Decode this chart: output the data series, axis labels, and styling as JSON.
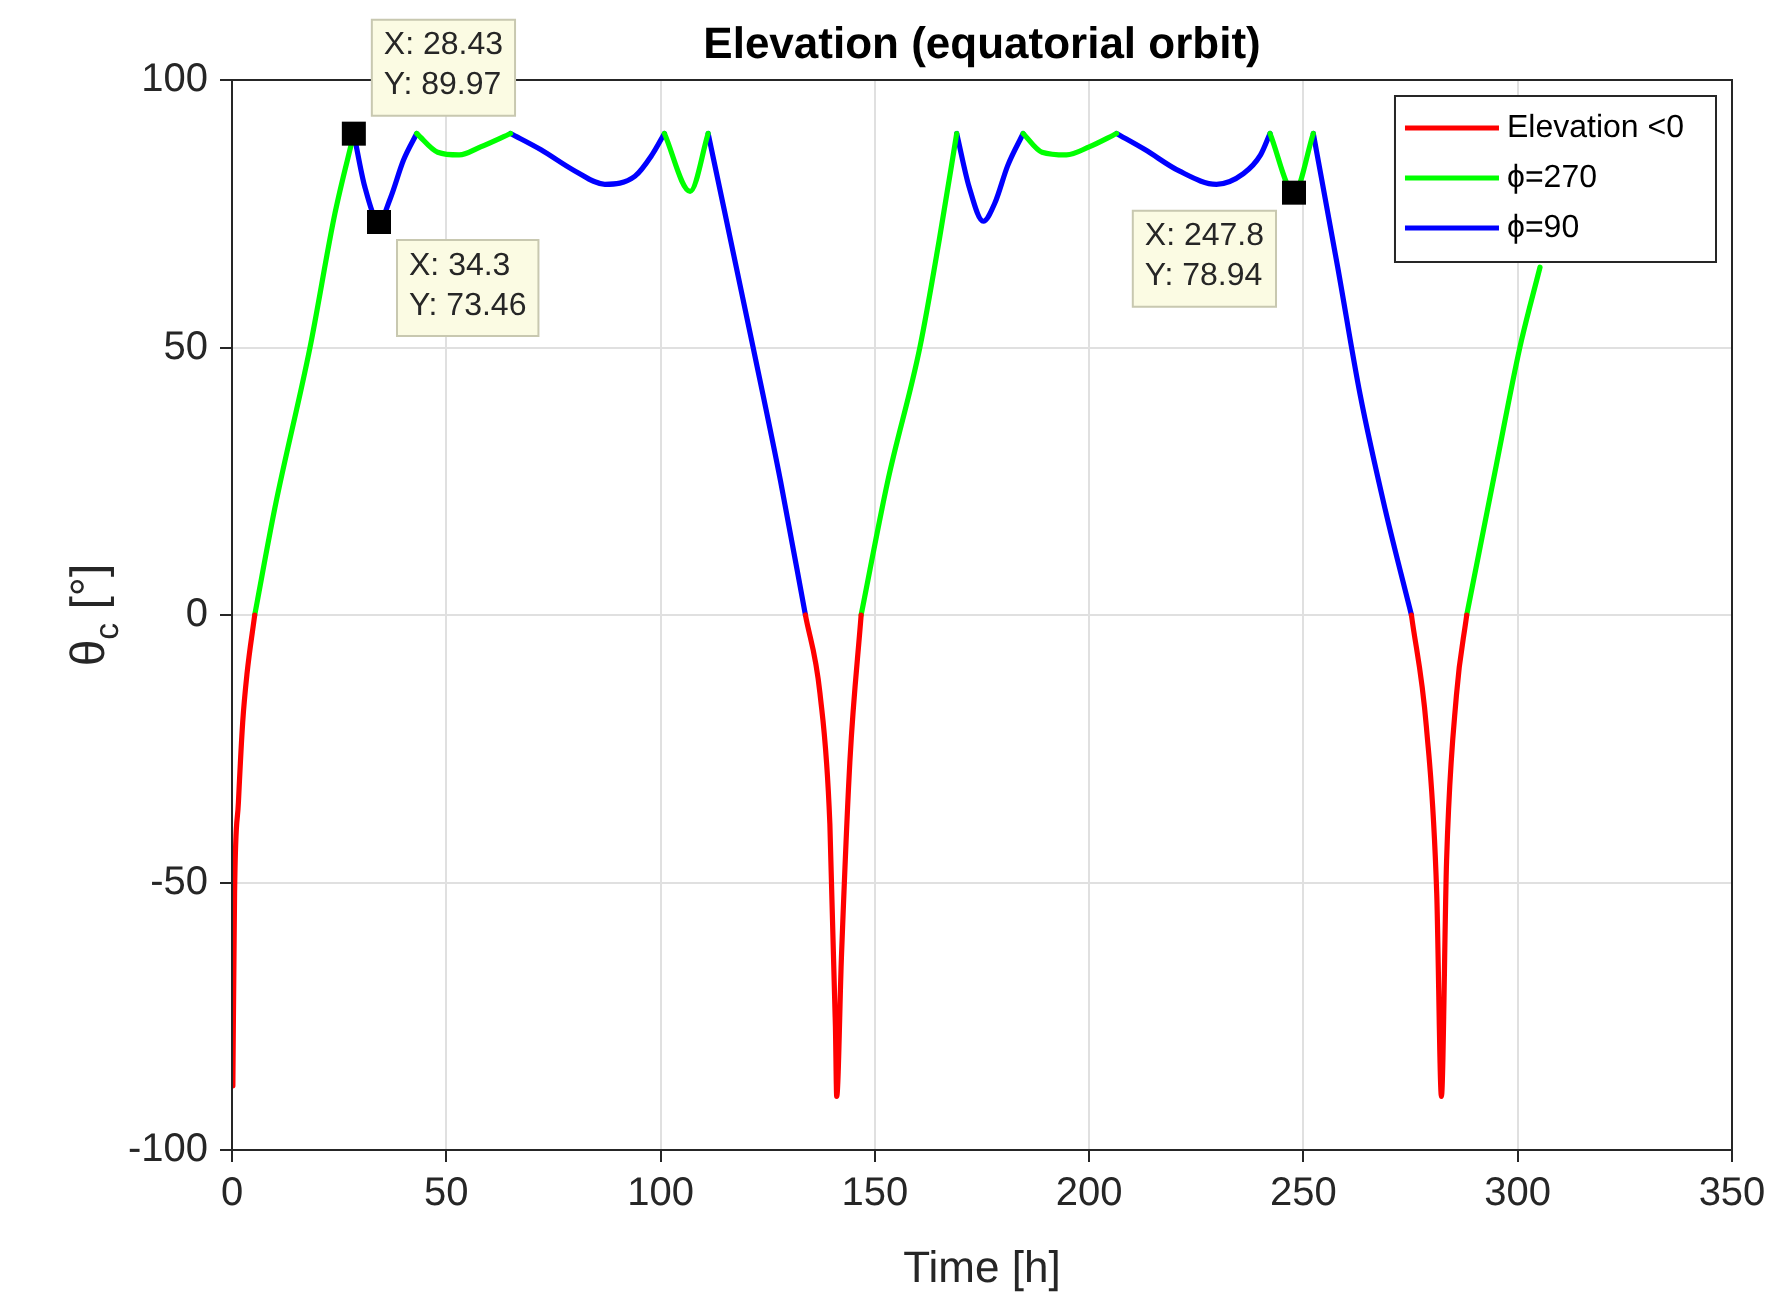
{
  "chart_data": {
    "type": "line",
    "title": "Elevation (equatorial orbit)",
    "xlabel": "Time [h]",
    "ylabel": "θ$_{c}$ [°]",
    "xlim": [
      0,
      350
    ],
    "xticks": [
      0,
      50,
      100,
      150,
      200,
      250,
      300,
      350
    ],
    "ylim": [
      -100,
      100
    ],
    "yticks": [
      -100,
      -50,
      0,
      50,
      100
    ],
    "grid": true,
    "legend": "top right",
    "marker": "none",
    "line_style": "solid",
    "series": [
      {
        "name": "Elevation <0",
        "color": "#ff0000",
        "x": [
          0.2,
          0.6,
          1.5,
          2.5,
          3.5,
          5.3,
          null,
          133.8,
          137.2,
          139.5,
          140.8,
          141.1,
          142.2,
          144.2,
          146.8,
          null,
          275.2,
          278.7,
          281.1,
          282.2,
          283.4,
          285.7,
          288.1
        ],
        "values": [
          -88,
          -52,
          -35,
          -20,
          -11,
          0,
          null,
          0,
          -14.7,
          -39,
          -77,
          -90,
          -64,
          -27,
          0,
          null,
          0,
          -21,
          -52,
          -90,
          -46,
          -15,
          0
        ]
      },
      {
        "name": "ϕ=270",
        "color": "#00ff00",
        "x": [
          5.3,
          10,
          18.2,
          24,
          28.43,
          null,
          43.1,
          48,
          53,
          58,
          65,
          null,
          100.9,
          106.9,
          111.1,
          null,
          146.8,
          153,
          160.5,
          165,
          169.1,
          null,
          184.6,
          189,
          194.7,
          200,
          206.4,
          null,
          242.2,
          247.8,
          252.3,
          null,
          288.1,
          295,
          300.5,
          305.2
        ],
        "values": [
          0,
          20,
          50,
          75,
          89.97,
          null,
          90,
          86.5,
          86,
          87.5,
          90,
          null,
          90,
          79.2,
          90,
          null,
          0,
          25,
          50,
          70,
          90,
          null,
          90,
          86.5,
          86,
          87.5,
          90,
          null,
          90,
          78.94,
          90,
          null,
          0,
          28,
          50,
          65
        ]
      },
      {
        "name": "ϕ=90",
        "color": "#0000ff",
        "x": [
          28.43,
          31,
          34.3,
          37,
          40,
          43.1,
          null,
          65,
          72,
          80,
          87,
          94,
          98,
          100.9,
          null,
          111.1,
          121.6,
          128,
          133.8,
          null,
          169.1,
          172,
          175.3,
          178,
          181,
          184.6,
          null,
          206.4,
          213,
          221,
          229.7,
          236,
          240,
          242.2,
          null,
          252.3,
          258,
          263.2,
          269,
          275.2
        ],
        "values": [
          89.97,
          80,
          73.46,
          78,
          85,
          90,
          null,
          90,
          87,
          83,
          80.5,
          82,
          86,
          90,
          null,
          90,
          50,
          25,
          0,
          null,
          90,
          80,
          73.6,
          77,
          84,
          90,
          null,
          90,
          87,
          83,
          80.5,
          82.5,
          86,
          90,
          null,
          90,
          65,
          41.3,
          20,
          0
        ]
      }
    ],
    "annotations": [
      {
        "text": "X: 28.43\nY: 89.97",
        "x": 28.43,
        "y": 89.97
      },
      {
        "text": "X: 34.3\nY: 73.46",
        "x": 34.3,
        "y": 73.46
      },
      {
        "text": "X: 247.8\nY: 78.94",
        "x": 247.8,
        "y": 78.94
      }
    ]
  }
}
